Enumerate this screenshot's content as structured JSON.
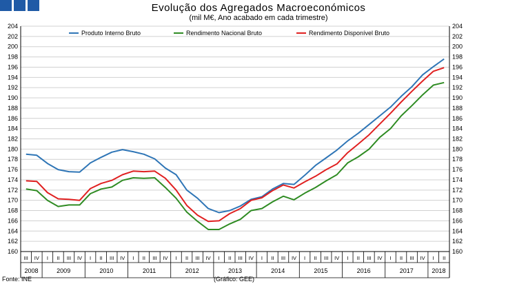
{
  "header": {
    "title": "Evolução dos Agregados Macroeconómicos",
    "subtitle": "(mil M€, Ano acabado em cada trimestre)"
  },
  "footer": {
    "source": "Fonte: INE",
    "credit": "(Gráfico: GEE)"
  },
  "logo": {
    "icon": "gee-logo-squares",
    "color": "#1f5aa6"
  },
  "chart_data": {
    "type": "line",
    "ylim": [
      160,
      204
    ],
    "ytick_step": 2,
    "grid": true,
    "legend": "top",
    "quarters": [
      "III",
      "IV",
      "I",
      "II",
      "III",
      "IV",
      "I",
      "II",
      "III",
      "IV",
      "I",
      "II",
      "III",
      "IV",
      "I",
      "II",
      "III",
      "IV",
      "I",
      "II",
      "III",
      "IV",
      "I",
      "II",
      "III",
      "IV",
      "I",
      "II",
      "III",
      "IV",
      "I",
      "II",
      "III",
      "IV",
      "I",
      "II",
      "III",
      "IV",
      "I",
      "II"
    ],
    "years": [
      {
        "label": "2008",
        "start": 0,
        "count": 2
      },
      {
        "label": "2009",
        "start": 2,
        "count": 4
      },
      {
        "label": "2010",
        "start": 6,
        "count": 4
      },
      {
        "label": "2011",
        "start": 10,
        "count": 4
      },
      {
        "label": "2012",
        "start": 14,
        "count": 4
      },
      {
        "label": "2013",
        "start": 18,
        "count": 4
      },
      {
        "label": "2014",
        "start": 22,
        "count": 4
      },
      {
        "label": "2015",
        "start": 26,
        "count": 4
      },
      {
        "label": "2016",
        "start": 30,
        "count": 4
      },
      {
        "label": "2017",
        "start": 34,
        "count": 4
      },
      {
        "label": "2018",
        "start": 38,
        "count": 2
      }
    ],
    "series": [
      {
        "name": "Produto Interno Bruto",
        "color": "#2e75b6",
        "values": [
          179.0,
          178.8,
          177.2,
          176.0,
          175.6,
          175.5,
          177.3,
          178.4,
          179.4,
          179.9,
          179.5,
          179.0,
          178.1,
          176.3,
          175.0,
          172.0,
          170.4,
          168.4,
          167.6,
          168.0,
          168.9,
          170.2,
          170.7,
          172.2,
          173.3,
          173.1,
          174.9,
          176.8,
          178.3,
          179.8,
          181.6,
          183.1,
          184.8,
          186.5,
          188.2,
          190.3,
          192.2,
          194.5,
          196.1,
          197.6
        ]
      },
      {
        "name": "Rendimento Nacional Bruto",
        "color": "#2e8b22",
        "values": [
          172.2,
          171.9,
          170.0,
          168.8,
          169.1,
          169.1,
          171.3,
          172.2,
          172.6,
          173.9,
          174.4,
          174.3,
          174.4,
          172.5,
          170.4,
          167.7,
          165.9,
          164.3,
          164.3,
          165.4,
          166.3,
          168.0,
          168.4,
          169.7,
          170.8,
          170.1,
          171.4,
          172.5,
          173.8,
          175.0,
          177.3,
          178.5,
          180.0,
          182.3,
          184.0,
          186.5,
          188.5,
          190.6,
          192.5,
          193.0
        ]
      },
      {
        "name": "Rendimento Disponível Bruto",
        "color": "#e02020",
        "values": [
          173.8,
          173.7,
          171.5,
          170.3,
          170.2,
          170.0,
          172.3,
          173.3,
          173.9,
          175.0,
          175.7,
          175.6,
          175.7,
          174.3,
          172.0,
          169.0,
          167.1,
          165.9,
          166.0,
          167.4,
          168.4,
          170.0,
          170.5,
          171.9,
          173.0,
          172.4,
          173.6,
          174.7,
          176.0,
          177.1,
          179.3,
          181.0,
          182.8,
          184.9,
          187.0,
          189.2,
          191.3,
          193.3,
          195.2,
          195.9
        ]
      }
    ]
  }
}
